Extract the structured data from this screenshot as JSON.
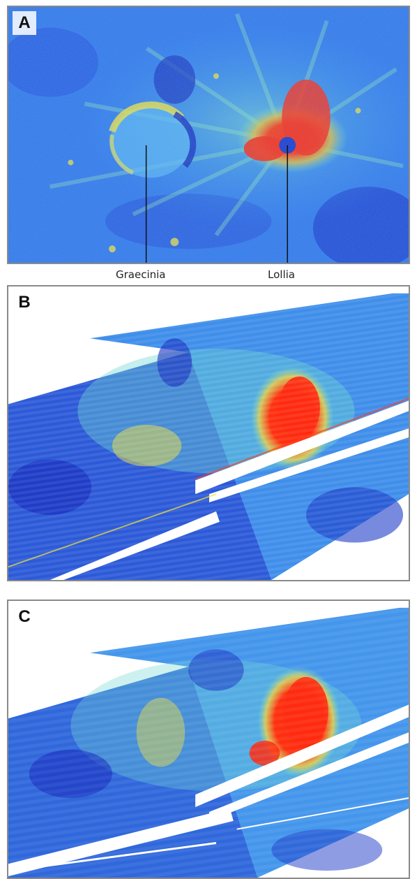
{
  "panels": [
    {
      "letter": "A"
    },
    {
      "letter": "B"
    },
    {
      "letter": "C"
    }
  ],
  "labels": {
    "crater_left": "Graecinia",
    "crater_right": "Lollia"
  },
  "colors": {
    "low": "#1c3fd6",
    "mid_low": "#3fa0f0",
    "mid": "#6fe0d0",
    "mid_high": "#f0e040",
    "high": "#ff2a10",
    "frame": "#8a8a8a"
  }
}
